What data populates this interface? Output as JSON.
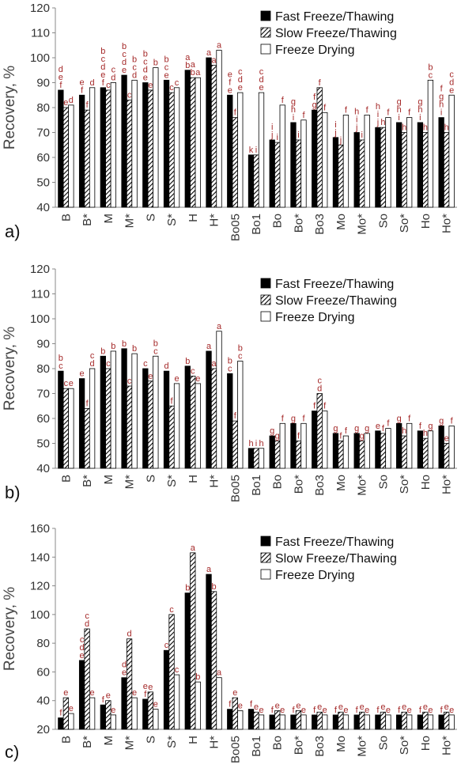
{
  "chart_data": [
    {
      "type": "bar",
      "label": "a)",
      "y_label": "Recovery, %",
      "categories": [
        "B",
        "B*",
        "M",
        "M*",
        "S",
        "S*",
        "H",
        "H*",
        "Bo05",
        "Bo1",
        "Bo",
        "Bo*",
        "Bo3",
        "Mo",
        "Mo*",
        "So",
        "So*",
        "Ho",
        "Ho*"
      ],
      "ylim": [
        40,
        120
      ],
      "yticks": [
        40,
        50,
        60,
        70,
        80,
        90,
        100,
        110,
        120
      ],
      "series": [
        {
          "name": "Fast Freeze/Thawing",
          "pattern": "solid",
          "color": "#000000",
          "values": [
            87,
            85,
            88,
            93,
            90,
            91,
            95,
            100,
            85,
            61,
            67,
            74,
            79,
            68,
            70,
            72,
            74,
            74,
            76
          ],
          "letters": [
            "def",
            "ef",
            "bcdef",
            "bcde",
            "bcde",
            "bce",
            "ab",
            "a",
            "efe",
            "k",
            "ij",
            "ghi",
            "fg",
            "ij",
            "hij",
            "hij",
            "ghi",
            "ghi",
            "fghi"
          ]
        },
        {
          "name": "Slow Freeze/Thawing",
          "pattern": "hatch",
          "color": "#000000",
          "values": [
            80,
            79,
            87,
            83,
            87,
            86,
            92,
            97,
            76,
            61,
            66,
            67,
            88,
            65,
            67,
            72,
            70,
            70,
            70
          ],
          "letters": [
            "e",
            "f",
            "c",
            "c",
            "e",
            "c",
            "ab",
            "a",
            "f",
            "i",
            "i",
            "i",
            "f",
            "j",
            "i",
            "h",
            "h",
            "h",
            "h"
          ]
        },
        {
          "name": "Freeze Drying",
          "pattern": "open",
          "color": "#000000",
          "values": [
            81,
            88,
            90,
            91,
            96,
            88,
            92,
            103,
            86,
            86,
            81,
            75,
            78,
            77,
            77,
            76,
            76,
            91,
            85
          ],
          "letters": [
            "d",
            "d",
            "cd",
            "bcd",
            "b",
            "c",
            "a",
            "a",
            "cde",
            "cde",
            "f",
            "f",
            "f",
            "f",
            "f",
            "f",
            "f",
            "bc",
            "cde"
          ]
        }
      ]
    },
    {
      "type": "bar",
      "label": "b)",
      "y_label": "Recovery, %",
      "categories": [
        "B",
        "B*",
        "M",
        "M*",
        "S",
        "S*",
        "H",
        "H*",
        "Bo05",
        "Bo1",
        "Bo",
        "Bo*",
        "Bo3",
        "Mo",
        "Mo*",
        "So",
        "So*",
        "Ho",
        "Ho*"
      ],
      "ylim": [
        40,
        120
      ],
      "yticks": [
        40,
        50,
        60,
        70,
        80,
        90,
        100,
        110,
        120
      ],
      "series": [
        {
          "name": "Fast Freeze/Thawing",
          "pattern": "solid",
          "color": "#000000",
          "values": [
            79,
            76,
            85,
            88,
            80,
            79,
            81,
            87,
            78,
            48,
            53,
            58,
            63,
            54,
            54,
            55,
            58,
            55,
            57
          ],
          "letters": [
            "bc",
            "e",
            "b",
            "b",
            "c",
            "d",
            "b",
            "a",
            "bc",
            "h",
            "g",
            "g",
            "f",
            "g",
            "g",
            "e",
            "g",
            "f",
            "g"
          ]
        },
        {
          "name": "Slow Freeze/Thawing",
          "pattern": "hatch",
          "color": "#000000",
          "values": [
            72,
            64,
            80,
            73,
            75,
            65,
            77,
            80,
            59,
            48,
            51,
            51,
            70,
            51,
            51,
            54,
            53,
            52,
            50
          ],
          "letters": [
            "c",
            "f",
            "c",
            "c",
            "e",
            "f",
            "c",
            "a",
            "f",
            "i",
            "g",
            "f",
            "cd",
            "f",
            "g",
            "f",
            "h",
            "h",
            "e"
          ]
        },
        {
          "name": "Freeze Drying",
          "pattern": "open",
          "color": "#000000",
          "values": [
            72,
            80,
            87,
            86,
            85,
            74,
            74,
            95,
            83,
            48,
            58,
            58,
            63,
            53,
            54,
            56,
            58,
            55,
            57
          ],
          "letters": [
            "e",
            "cd",
            "b",
            "b",
            "bc",
            "e",
            "e",
            "a",
            "bc",
            "h",
            "f",
            "f",
            "f",
            "f",
            "g",
            "f",
            "f",
            "g",
            "f"
          ]
        }
      ]
    },
    {
      "type": "bar",
      "label": "c)",
      "y_label": "Recovery, %",
      "categories": [
        "B",
        "B*",
        "M",
        "M*",
        "S",
        "S*",
        "H",
        "H*",
        "Bo05",
        "Bo1",
        "Bo",
        "Bo*",
        "Bo3",
        "Mo",
        "Mo*",
        "So",
        "So*",
        "Ho",
        "Ho*"
      ],
      "ylim": [
        20,
        160
      ],
      "yticks": [
        20,
        40,
        60,
        80,
        100,
        120,
        140,
        160
      ],
      "series": [
        {
          "name": "Fast Freeze/Thawing",
          "pattern": "solid",
          "color": "#000000",
          "values": [
            28,
            68,
            37,
            56,
            41,
            75,
            115,
            128,
            34,
            34,
            30,
            30,
            30,
            30,
            30,
            30,
            30,
            30,
            30
          ],
          "letters": [
            "f",
            "cde",
            "f",
            "de",
            "ef",
            "c",
            "b",
            "a",
            "f",
            "f",
            "f",
            "f",
            "f",
            "f",
            "f",
            "f",
            "f",
            "f",
            "f"
          ]
        },
        {
          "name": "Slow Freeze/Thawing",
          "pattern": "hatch",
          "color": "#000000",
          "values": [
            42,
            90,
            40,
            83,
            46,
            100,
            143,
            116,
            42,
            32,
            33,
            33,
            32,
            32,
            32,
            32,
            32,
            32,
            32
          ],
          "letters": [
            "e",
            "cd",
            "e",
            "d",
            "e",
            "c",
            "a",
            "b",
            "e",
            "e",
            "e",
            "e",
            "e",
            "e",
            "e",
            "e",
            "e",
            "e",
            "e"
          ]
        },
        {
          "name": "Freeze Drying",
          "pattern": "open",
          "color": "#000000",
          "values": [
            31,
            42,
            30,
            42,
            34,
            58,
            53,
            56,
            33,
            30,
            30,
            30,
            30,
            30,
            30,
            30,
            30,
            30,
            30
          ],
          "letters": [
            "e",
            "e",
            "e",
            "e",
            "e",
            "c",
            "b",
            "a",
            "e",
            "e",
            "e",
            "e",
            "e",
            "e",
            "e",
            "e",
            "e",
            "e",
            "e"
          ]
        }
      ]
    }
  ]
}
